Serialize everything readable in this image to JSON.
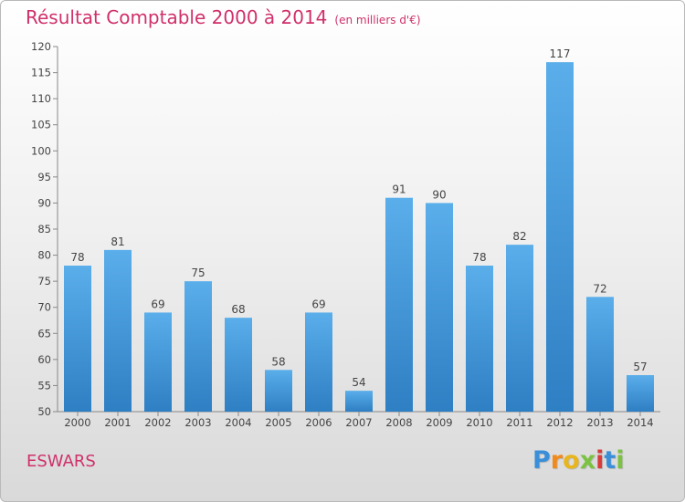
{
  "header": {
    "title": "Résultat Comptable 2000 à 2014",
    "subtitle": "(en milliers d'€)"
  },
  "commune": "ESWARS",
  "logo": {
    "letters": [
      "P",
      "r",
      "o",
      "x",
      "i",
      "t",
      "i"
    ],
    "colors": [
      "#3a8fd8",
      "#f08a1c",
      "#e8b51c",
      "#7cc242",
      "#d93a3a",
      "#3a8fd8",
      "#7cc242"
    ]
  },
  "colors": {
    "bar_light": "#5aaeea",
    "bar_dark": "#2e7fc3",
    "title": "#d0306a"
  },
  "chart_data": {
    "type": "bar",
    "title": "Résultat Comptable 2000 à 2014",
    "subtitle": "(en milliers d'€)",
    "categories": [
      "2000",
      "2001",
      "2002",
      "2003",
      "2004",
      "2005",
      "2006",
      "2007",
      "2008",
      "2009",
      "2010",
      "2011",
      "2012",
      "2013",
      "2014"
    ],
    "values": [
      78,
      81,
      69,
      75,
      68,
      58,
      69,
      54,
      91,
      90,
      78,
      82,
      117,
      72,
      57
    ],
    "ylim": [
      50,
      120
    ],
    "yticks": [
      50,
      55,
      60,
      65,
      70,
      75,
      80,
      85,
      90,
      95,
      100,
      105,
      110,
      115,
      120
    ],
    "grid": false,
    "data_labels": true
  }
}
